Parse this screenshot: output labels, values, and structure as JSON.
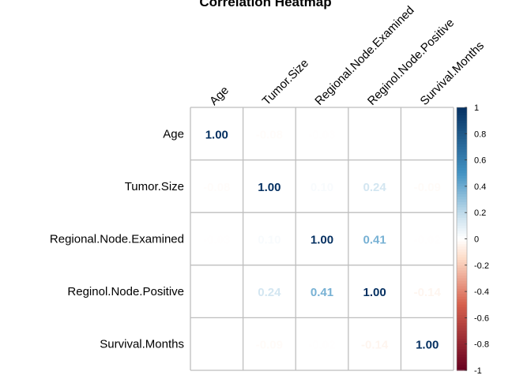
{
  "chart_data": {
    "type": "heatmap",
    "title": "Correlation Heatmap",
    "row_labels": [
      "Age",
      "Tumor.Size",
      "Regional.Node.Examined",
      "Reginol.Node.Positive",
      "Survival.Months"
    ],
    "col_labels": [
      "Age",
      "Tumor.Size",
      "Regional.Node.Examined",
      "Reginol.Node.Positive",
      "Survival.Months"
    ],
    "values": [
      [
        1.0,
        -0.08,
        -0.03,
        0.01,
        0.0
      ],
      [
        -0.08,
        1.0,
        0.1,
        0.24,
        -0.09
      ],
      [
        -0.03,
        0.1,
        1.0,
        0.41,
        -0.02
      ],
      [
        0.01,
        0.24,
        0.41,
        1.0,
        -0.14
      ],
      [
        0.0,
        -0.09,
        -0.02,
        -0.14,
        1.0
      ]
    ],
    "colorbar": {
      "range": [
        -1,
        1
      ],
      "ticks": [
        "1",
        "0.8",
        "0.6",
        "0.4",
        "0.2",
        "0",
        "-0.2",
        "-0.4",
        "-0.6",
        "-0.8",
        "-1"
      ]
    },
    "colors": {
      "negative_strong": "#67001f",
      "negative_mid": "#d6604d",
      "negative_light": "#fddbc7",
      "neutral": "#ffffff",
      "positive_light": "#d1e5f0",
      "positive_mid": "#4393c3",
      "positive_strong": "#053061",
      "grid": "#bebebe"
    }
  }
}
